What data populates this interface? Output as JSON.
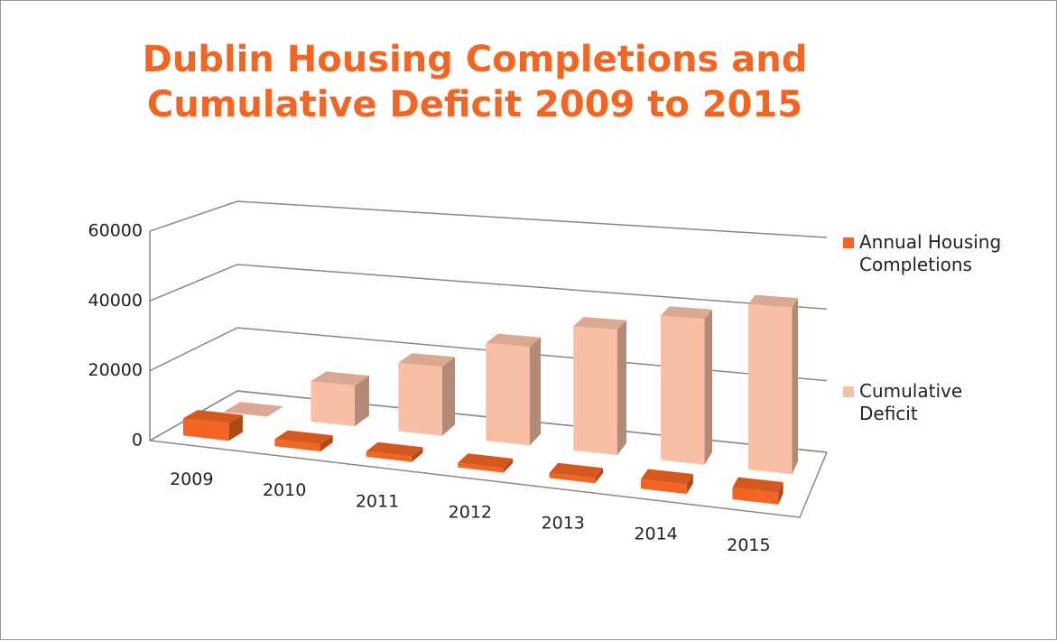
{
  "chart_data": {
    "type": "bar3d",
    "title": "Dublin Housing Completions and Cumulative Deficit 2009 to 2015",
    "categories": [
      "2009",
      "2010",
      "2011",
      "2012",
      "2013",
      "2014",
      "2015"
    ],
    "series": [
      {
        "name": "Annual Housing Completions",
        "color": "#f26522",
        "values": [
          5000,
          2000,
          1500,
          1200,
          1400,
          2500,
          3000
        ]
      },
      {
        "name": "Cumulative Deficit",
        "color": "#f9bfa5",
        "values": [
          0,
          12000,
          20000,
          28000,
          35000,
          40000,
          45000
        ]
      }
    ],
    "ylim": [
      0,
      60000
    ],
    "yticks": [
      0,
      20000,
      40000,
      60000
    ],
    "grid": true,
    "legend": "right"
  }
}
